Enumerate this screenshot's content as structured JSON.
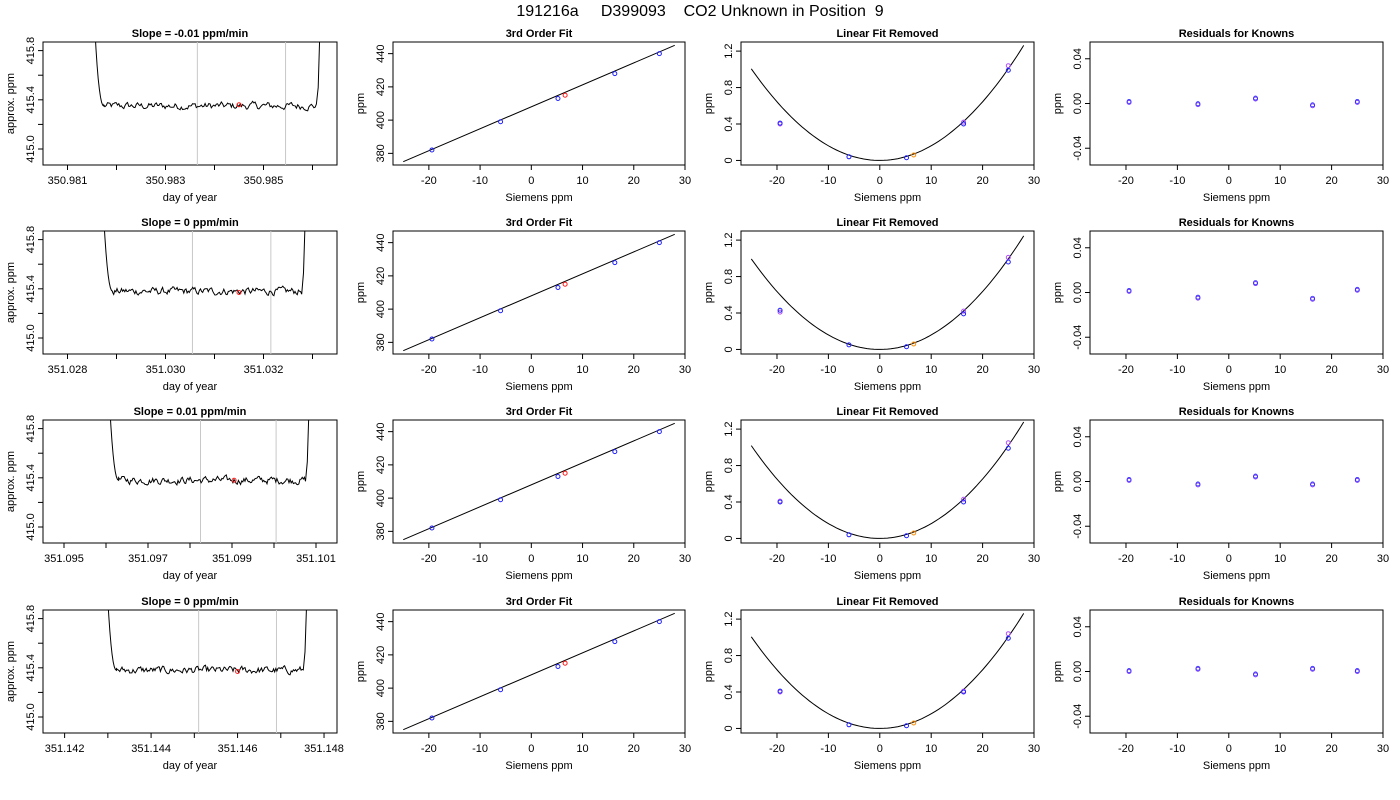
{
  "figure_title": "191216a     D399093    CO2 Unknown in Position  9",
  "colors": {
    "axis": "#000000",
    "line": "#000000",
    "known_point": "#1f1fff",
    "known_point_alt": "#b050ff",
    "unknown_point_fit": "#ff2020",
    "unknown_point_linear": "#ff8c00",
    "marker_vline": "#c8c8c8",
    "residual_point": "#7a3cff"
  },
  "labels": {
    "approx_ppm": "approx. ppm",
    "day_of_year": "day of year",
    "ppm": "ppm",
    "siemens_ppm": "Siemens ppm",
    "fit_title": "3rd Order Fit",
    "linear_title": "Linear Fit Removed",
    "residual_title": "Residuals for Knowns"
  },
  "rows": [
    {
      "slope_title": "Slope =  -0.01  ppm/min"
    },
    {
      "slope_title": "Slope =  0  ppm/min"
    },
    {
      "slope_title": "Slope =  0.01  ppm/min"
    },
    {
      "slope_title": "Slope =  0  ppm/min"
    }
  ],
  "chart_data": [
    {
      "row": 1,
      "panel": "time_series",
      "type": "line",
      "title": "Slope =  -0.01  ppm/min",
      "xlabel": "day of year",
      "ylabel": "approx. ppm",
      "xlim": [
        350.9805,
        350.9865
      ],
      "ylim": [
        414.87,
        415.87
      ],
      "xticks": [
        350.981,
        350.982,
        350.983,
        350.984,
        350.985,
        350.986
      ],
      "xticklabels": [
        "350.981",
        "",
        "350.983",
        "",
        "350.985",
        ""
      ],
      "yticks": [
        415.0,
        415.2,
        415.4,
        415.6,
        415.8
      ],
      "yticklabels": [
        "415.0",
        "",
        "415.4",
        "",
        "415.8"
      ],
      "series": [
        {
          "base": 415.35,
          "start": 350.98174,
          "end": 350.98608
        }
      ],
      "vlines": [
        350.98365,
        350.98545
      ],
      "points": [
        {
          "x": 350.9845,
          "y": 415.36,
          "color": "red"
        }
      ]
    },
    {
      "row": 1,
      "panel": "fit",
      "type": "scatter",
      "title": "3rd Order Fit",
      "xlabel": "Siemens ppm",
      "ylabel": "ppm",
      "xlim": [
        -27,
        30
      ],
      "ylim": [
        373,
        447
      ],
      "xticks": [
        -20,
        -10,
        0,
        10,
        20,
        30
      ],
      "yticks": [
        380,
        400,
        420,
        440
      ],
      "line": {
        "x": [
          -25,
          28
        ],
        "y": [
          375.0,
          445.0
        ]
      },
      "knowns": [
        {
          "x": -19.4,
          "y": 382
        },
        {
          "x": -6.0,
          "y": 399
        },
        {
          "x": 5.2,
          "y": 413
        },
        {
          "x": 16.3,
          "y": 428
        },
        {
          "x": 25.0,
          "y": 440
        }
      ],
      "unknown": {
        "x": 6.6,
        "y": 415
      }
    },
    {
      "row": 1,
      "panel": "linear_removed",
      "type": "scatter",
      "title": "Linear Fit Removed",
      "xlabel": "Siemens ppm",
      "ylabel": "ppm",
      "xlim": [
        -27,
        30
      ],
      "ylim": [
        -0.05,
        1.3
      ],
      "xticks": [
        -20,
        -10,
        0,
        10,
        20,
        30
      ],
      "yticks": [
        0.0,
        0.4,
        0.8,
        1.2
      ],
      "curve_coef": 0.00161,
      "knowns": [
        {
          "x": -19.4,
          "y": 0.41
        },
        {
          "x": -6.0,
          "y": 0.04
        },
        {
          "x": 5.2,
          "y": 0.03
        },
        {
          "x": 16.3,
          "y": 0.4
        },
        {
          "x": 25.0,
          "y": 0.99
        }
      ],
      "knowns_alt": [
        {
          "x": -19.4,
          "y": 0.4
        },
        {
          "x": 16.3,
          "y": 0.42
        },
        {
          "x": 25.0,
          "y": 1.04
        }
      ],
      "unknown": {
        "x": 6.6,
        "y": 0.06
      }
    },
    {
      "row": 1,
      "panel": "residuals",
      "type": "scatter",
      "title": "Residuals for Knowns",
      "xlabel": "Siemens ppm",
      "ylabel": "ppm",
      "xlim": [
        -27,
        30
      ],
      "ylim": [
        -0.055,
        0.055
      ],
      "xticks": [
        -20,
        -10,
        0,
        10,
        20,
        30
      ],
      "yticks": [
        -0.04,
        0.0,
        0.04
      ],
      "yticklabels": [
        "-0.04",
        "0.00",
        "0.04"
      ],
      "points": [
        {
          "x": -19.4,
          "y": 0.001
        },
        {
          "x": -6.0,
          "y": -0.001
        },
        {
          "x": 5.2,
          "y": 0.004
        },
        {
          "x": 16.3,
          "y": -0.002
        },
        {
          "x": 25.0,
          "y": 0.001
        }
      ]
    },
    {
      "row": 2,
      "panel": "time_series",
      "type": "line",
      "title": "Slope =  0  ppm/min",
      "xlabel": "day of year",
      "ylabel": "approx. ppm",
      "xlim": [
        351.0275,
        351.0335
      ],
      "ylim": [
        414.87,
        415.87
      ],
      "xticks": [
        351.028,
        351.029,
        351.03,
        351.031,
        351.032,
        351.033
      ],
      "xticklabels": [
        "351.028",
        "",
        "351.030",
        "",
        "351.032",
        ""
      ],
      "yticks": [
        415.0,
        415.2,
        415.4,
        415.6,
        415.8
      ],
      "yticklabels": [
        "415.0",
        "",
        "415.4",
        "",
        "415.8"
      ],
      "series": [
        {
          "base": 415.38,
          "start": 351.02892,
          "end": 351.03278
        }
      ],
      "vlines": [
        351.03055,
        351.03215
      ],
      "points": [
        {
          "x": 351.0315,
          "y": 415.37,
          "color": "red"
        }
      ]
    },
    {
      "row": 2,
      "panel": "fit",
      "type": "scatter",
      "title": "3rd Order Fit",
      "xlabel": "Siemens ppm",
      "ylabel": "ppm",
      "xlim": [
        -27,
        30
      ],
      "ylim": [
        373,
        447
      ],
      "xticks": [
        -20,
        -10,
        0,
        10,
        20,
        30
      ],
      "yticks": [
        380,
        400,
        420,
        440
      ],
      "line": {
        "x": [
          -25,
          28
        ],
        "y": [
          375.0,
          445.0
        ]
      },
      "knowns": [
        {
          "x": -19.4,
          "y": 382
        },
        {
          "x": -6.0,
          "y": 399
        },
        {
          "x": 5.2,
          "y": 413
        },
        {
          "x": 16.3,
          "y": 428
        },
        {
          "x": 25.0,
          "y": 440
        }
      ],
      "unknown": {
        "x": 6.6,
        "y": 415
      }
    },
    {
      "row": 2,
      "panel": "linear_removed",
      "type": "scatter",
      "title": "Linear Fit Removed",
      "xlabel": "Siemens ppm",
      "ylabel": "ppm",
      "xlim": [
        -27,
        30
      ],
      "ylim": [
        -0.05,
        1.3
      ],
      "xticks": [
        -20,
        -10,
        0,
        10,
        20,
        30
      ],
      "yticks": [
        0.0,
        0.4,
        0.8,
        1.2
      ],
      "curve_coef": 0.00159,
      "knowns": [
        {
          "x": -19.4,
          "y": 0.43
        },
        {
          "x": -6.0,
          "y": 0.05
        },
        {
          "x": 5.2,
          "y": 0.03
        },
        {
          "x": 16.3,
          "y": 0.39
        },
        {
          "x": 25.0,
          "y": 0.96
        }
      ],
      "knowns_alt": [
        {
          "x": -19.4,
          "y": 0.41
        },
        {
          "x": 16.3,
          "y": 0.42
        },
        {
          "x": 25.0,
          "y": 1.01
        }
      ],
      "unknown": {
        "x": 6.6,
        "y": 0.06
      }
    },
    {
      "row": 2,
      "panel": "residuals",
      "type": "scatter",
      "title": "Residuals for Knowns",
      "xlabel": "Siemens ppm",
      "ylabel": "ppm",
      "xlim": [
        -27,
        30
      ],
      "ylim": [
        -0.055,
        0.055
      ],
      "xticks": [
        -20,
        -10,
        0,
        10,
        20,
        30
      ],
      "yticks": [
        -0.04,
        0.0,
        0.04
      ],
      "yticklabels": [
        "-0.04",
        "0.00",
        "0.04"
      ],
      "points": [
        {
          "x": -19.4,
          "y": 0.001
        },
        {
          "x": -6.0,
          "y": -0.005
        },
        {
          "x": 5.2,
          "y": 0.008
        },
        {
          "x": 16.3,
          "y": -0.006
        },
        {
          "x": 25.0,
          "y": 0.002
        }
      ]
    },
    {
      "row": 3,
      "panel": "time_series",
      "type": "line",
      "title": "Slope =  0.01  ppm/min",
      "xlabel": "day of year",
      "ylabel": "approx. ppm",
      "xlim": [
        351.0945,
        351.1015
      ],
      "ylim": [
        414.87,
        415.87
      ],
      "xticks": [
        351.095,
        351.096,
        351.097,
        351.098,
        351.099,
        351.1,
        351.101
      ],
      "xticklabels": [
        "351.095",
        "",
        "351.097",
        "",
        "351.099",
        "",
        "351.101"
      ],
      "yticks": [
        415.0,
        415.2,
        415.4,
        415.6,
        415.8
      ],
      "yticklabels": [
        "415.0",
        "",
        "415.4",
        "",
        "415.8"
      ],
      "series": [
        {
          "base": 415.38,
          "start": 351.0963,
          "end": 351.10075
        }
      ],
      "vlines": [
        351.09825,
        351.10005
      ],
      "points": [
        {
          "x": 351.09905,
          "y": 415.38,
          "color": "red"
        }
      ]
    },
    {
      "row": 3,
      "panel": "fit",
      "type": "scatter",
      "title": "3rd Order Fit",
      "xlabel": "Siemens ppm",
      "ylabel": "ppm",
      "xlim": [
        -27,
        30
      ],
      "ylim": [
        373,
        447
      ],
      "xticks": [
        -20,
        -10,
        0,
        10,
        20,
        30
      ],
      "yticks": [
        380,
        400,
        420,
        440
      ],
      "line": {
        "x": [
          -25,
          28
        ],
        "y": [
          375.0,
          445.0
        ]
      },
      "knowns": [
        {
          "x": -19.4,
          "y": 382
        },
        {
          "x": -6.0,
          "y": 399
        },
        {
          "x": 5.2,
          "y": 413
        },
        {
          "x": 16.3,
          "y": 428
        },
        {
          "x": 25.0,
          "y": 440
        }
      ],
      "unknown": {
        "x": 6.6,
        "y": 415
      }
    },
    {
      "row": 3,
      "panel": "linear_removed",
      "type": "scatter",
      "title": "Linear Fit Removed",
      "xlabel": "Siemens ppm",
      "ylabel": "ppm",
      "xlim": [
        -27,
        30
      ],
      "ylim": [
        -0.05,
        1.3
      ],
      "xticks": [
        -20,
        -10,
        0,
        10,
        20,
        30
      ],
      "yticks": [
        0.0,
        0.4,
        0.8,
        1.2
      ],
      "curve_coef": 0.00163,
      "knowns": [
        {
          "x": -19.4,
          "y": 0.4
        },
        {
          "x": -6.0,
          "y": 0.04
        },
        {
          "x": 5.2,
          "y": 0.03
        },
        {
          "x": 16.3,
          "y": 0.4
        },
        {
          "x": 25.0,
          "y": 0.99
        }
      ],
      "knowns_alt": [
        {
          "x": -19.4,
          "y": 0.41
        },
        {
          "x": 16.3,
          "y": 0.43
        },
        {
          "x": 25.0,
          "y": 1.05
        }
      ],
      "unknown": {
        "x": 6.6,
        "y": 0.06
      }
    },
    {
      "row": 3,
      "panel": "residuals",
      "type": "scatter",
      "title": "Residuals for Knowns",
      "xlabel": "Siemens ppm",
      "ylabel": "ppm",
      "xlim": [
        -27,
        30
      ],
      "ylim": [
        -0.055,
        0.055
      ],
      "xticks": [
        -20,
        -10,
        0,
        10,
        20,
        30
      ],
      "yticks": [
        -0.04,
        0.0,
        0.04
      ],
      "yticklabels": [
        "-0.04",
        "0.00",
        "0.04"
      ],
      "points": [
        {
          "x": -19.4,
          "y": 0.001
        },
        {
          "x": -6.0,
          "y": -0.003
        },
        {
          "x": 5.2,
          "y": 0.004
        },
        {
          "x": 16.3,
          "y": -0.003
        },
        {
          "x": 25.0,
          "y": 0.001
        }
      ]
    },
    {
      "row": 4,
      "panel": "time_series",
      "type": "line",
      "title": "Slope =  0  ppm/min",
      "xlabel": "day of year",
      "ylabel": "approx. ppm",
      "xlim": [
        351.1415,
        351.1483
      ],
      "ylim": [
        414.87,
        415.87
      ],
      "xticks": [
        351.142,
        351.143,
        351.144,
        351.145,
        351.146,
        351.147,
        351.148
      ],
      "xticklabels": [
        "351.142",
        "",
        "351.144",
        "",
        "351.146",
        "",
        "351.148"
      ],
      "yticks": [
        415.0,
        415.2,
        415.4,
        415.6,
        415.8
      ],
      "yticklabels": [
        "415.0",
        "",
        "415.4",
        "",
        "415.8"
      ],
      "series": [
        {
          "base": 415.38,
          "start": 351.1432,
          "end": 351.14752
        }
      ],
      "vlines": [
        351.1451,
        351.1469
      ],
      "points": [
        {
          "x": 351.146,
          "y": 415.37,
          "color": "red"
        }
      ]
    },
    {
      "row": 4,
      "panel": "fit",
      "type": "scatter",
      "title": "3rd Order Fit",
      "xlabel": "Siemens ppm",
      "ylabel": "ppm",
      "xlim": [
        -27,
        30
      ],
      "ylim": [
        373,
        447
      ],
      "xticks": [
        -20,
        -10,
        0,
        10,
        20,
        30
      ],
      "yticks": [
        380,
        400,
        420,
        440
      ],
      "line": {
        "x": [
          -25,
          28
        ],
        "y": [
          375.0,
          445.0
        ]
      },
      "knowns": [
        {
          "x": -19.4,
          "y": 382
        },
        {
          "x": -6.0,
          "y": 399
        },
        {
          "x": 5.2,
          "y": 413
        },
        {
          "x": 16.3,
          "y": 428
        },
        {
          "x": 25.0,
          "y": 440
        }
      ],
      "unknown": {
        "x": 6.6,
        "y": 415
      }
    },
    {
      "row": 4,
      "panel": "linear_removed",
      "type": "scatter",
      "title": "Linear Fit Removed",
      "xlabel": "Siemens ppm",
      "ylabel": "ppm",
      "xlim": [
        -27,
        30
      ],
      "ylim": [
        -0.05,
        1.3
      ],
      "xticks": [
        -20,
        -10,
        0,
        10,
        20,
        30
      ],
      "yticks": [
        0.0,
        0.4,
        0.8,
        1.2
      ],
      "curve_coef": 0.00161,
      "knowns": [
        {
          "x": -19.4,
          "y": 0.41
        },
        {
          "x": -6.0,
          "y": 0.04
        },
        {
          "x": 5.2,
          "y": 0.03
        },
        {
          "x": 16.3,
          "y": 0.4
        },
        {
          "x": 25.0,
          "y": 0.99
        }
      ],
      "knowns_alt": [
        {
          "x": -19.4,
          "y": 0.4
        },
        {
          "x": 16.3,
          "y": 0.41
        },
        {
          "x": 25.0,
          "y": 1.04
        }
      ],
      "unknown": {
        "x": 6.6,
        "y": 0.06
      }
    },
    {
      "row": 4,
      "panel": "residuals",
      "type": "scatter",
      "title": "Residuals for Knowns",
      "xlabel": "Siemens ppm",
      "ylabel": "ppm",
      "xlim": [
        -27,
        30
      ],
      "ylim": [
        -0.055,
        0.055
      ],
      "xticks": [
        -20,
        -10,
        0,
        10,
        20,
        30
      ],
      "yticks": [
        -0.04,
        0.0,
        0.04
      ],
      "yticklabels": [
        "-0.04",
        "0.00",
        "0.04"
      ],
      "points": [
        {
          "x": -19.4,
          "y": 0.0
        },
        {
          "x": -6.0,
          "y": 0.002
        },
        {
          "x": 5.2,
          "y": -0.003
        },
        {
          "x": 16.3,
          "y": 0.002
        },
        {
          "x": 25.0,
          "y": 0.0
        }
      ]
    }
  ]
}
